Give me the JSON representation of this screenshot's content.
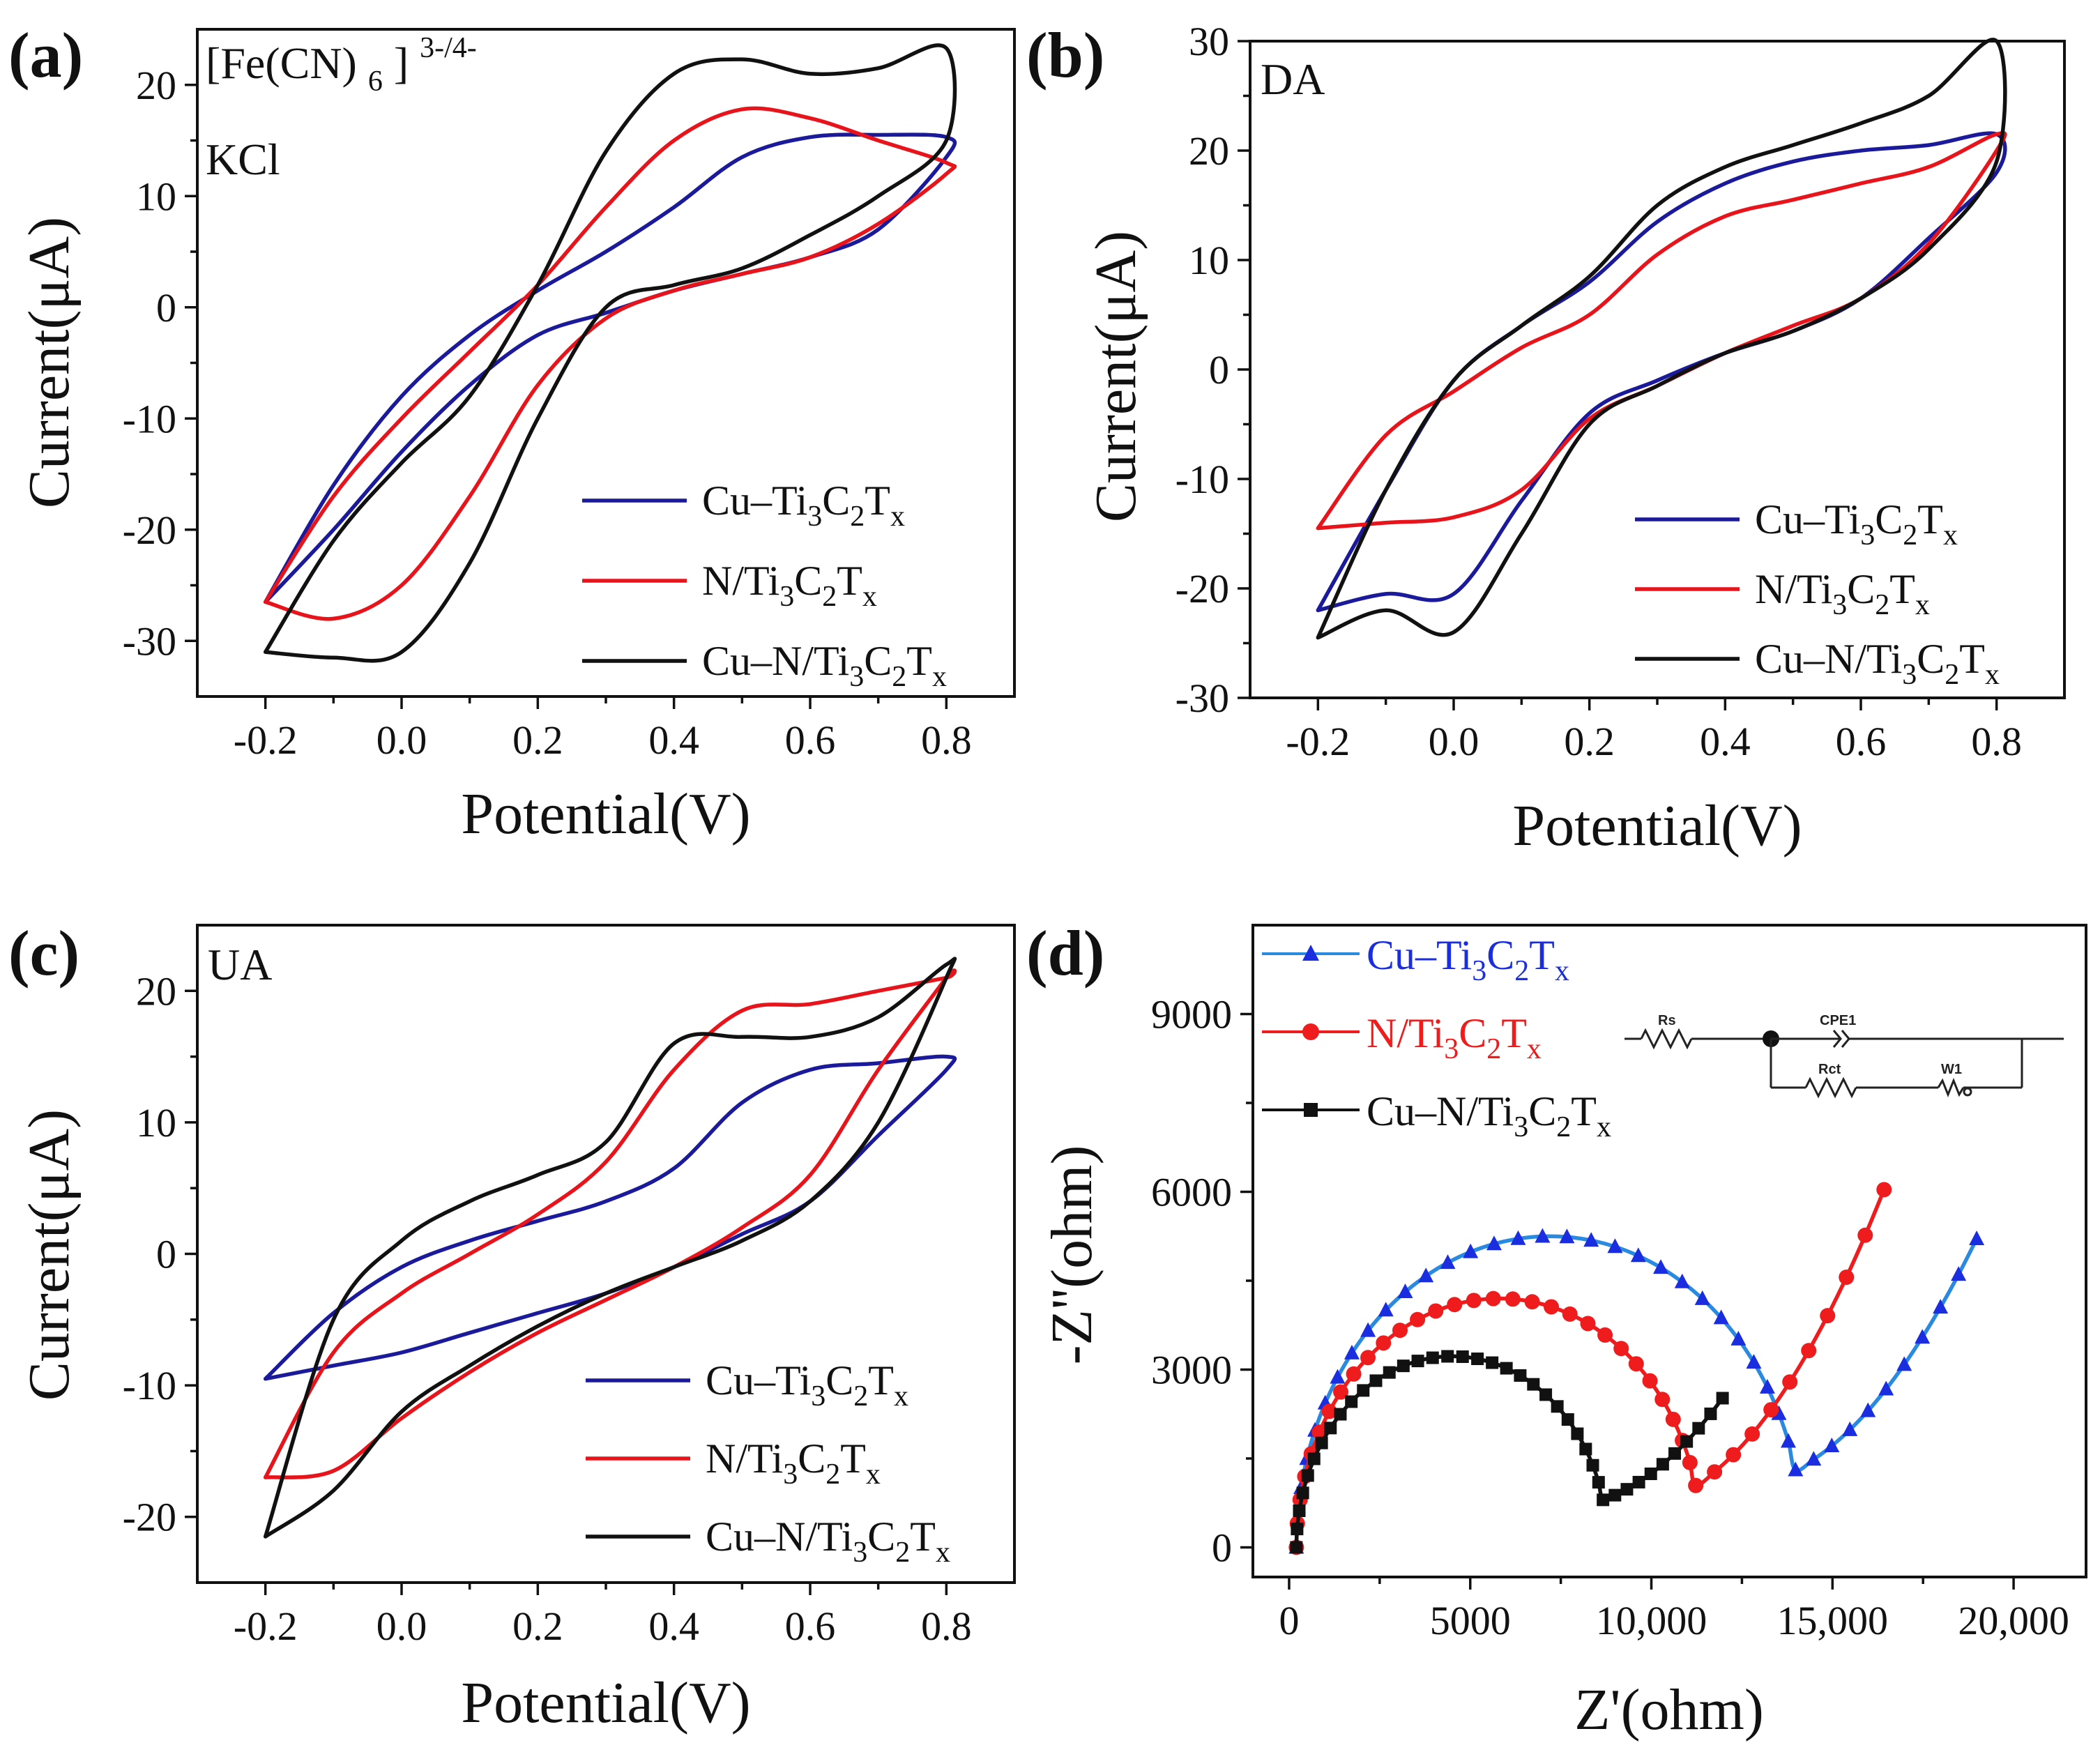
{
  "figure": {
    "colors": {
      "blue": "#1a1a9a",
      "red": "#e8141b",
      "black": "#111111",
      "eis_blue_line": "#2a8ae0",
      "eis_blue_marker": "#1a2ee0",
      "eis_red": "#ee1c1c"
    },
    "chart_data": [
      {
        "id": "a",
        "type": "line",
        "panel_label": "(a)",
        "annotations": [
          "[Fe(CN)6]3-/4-",
          "KCl"
        ],
        "annotation_parts": {
          "fe_main": "[Fe(CN)",
          "fe_sub": "6",
          "fe_sup": "]3-/4-",
          "kcl": "KCl"
        },
        "xlabel": "Potential(V)",
        "ylabel": "Current(μA)",
        "xlim": [
          -0.3,
          0.9
        ],
        "ylim": [
          -35,
          25
        ],
        "xticks": [
          -0.2,
          0.0,
          0.2,
          0.4,
          0.6,
          0.8
        ],
        "xtick_labels": [
          "-0.2",
          "0.0",
          "0.2",
          "0.4",
          "0.6",
          "0.8"
        ],
        "yticks": [
          -30,
          -20,
          -10,
          0,
          10,
          20
        ],
        "ytick_labels": [
          "-30",
          "-20",
          "-10",
          "0",
          "10",
          "20"
        ],
        "legend_position": "lower-right",
        "series": [
          {
            "name": "Cu–Ti3C2Tx",
            "color": "blue",
            "x": [
              -0.2,
              -0.1,
              0.0,
              0.1,
              0.2,
              0.3,
              0.4,
              0.5,
              0.6,
              0.7,
              0.8,
              0.8,
              0.7,
              0.6,
              0.5,
              0.4,
              0.3,
              0.2,
              0.1,
              0.0,
              -0.1,
              -0.2
            ],
            "y": [
              -26.5,
              -16,
              -8,
              -2.5,
              1.5,
              5,
              9,
              13.5,
              15.3,
              15.5,
              15.3,
              13.5,
              7,
              4.5,
              3,
              1.5,
              -0.5,
              -2.5,
              -7,
              -13,
              -20,
              -26.5
            ]
          },
          {
            "name": "N/Ti3C2Tx",
            "color": "red",
            "x": [
              -0.2,
              -0.1,
              0.0,
              0.1,
              0.2,
              0.3,
              0.4,
              0.5,
              0.6,
              0.7,
              0.8,
              0.8,
              0.7,
              0.6,
              0.5,
              0.4,
              0.3,
              0.2,
              0.1,
              0.0,
              -0.1,
              -0.2
            ],
            "y": [
              -26.5,
              -17,
              -10,
              -4,
              2,
              9,
              15,
              17.8,
              17,
              15,
              13,
              12,
              7.5,
              4.5,
              3,
              1.5,
              -1,
              -7,
              -17,
              -25,
              -28,
              -26.5
            ]
          },
          {
            "name": "Cu–N/Ti3C2Tx",
            "color": "black",
            "x": [
              -0.2,
              -0.1,
              0.0,
              0.1,
              0.2,
              0.3,
              0.4,
              0.5,
              0.6,
              0.7,
              0.8,
              0.8,
              0.7,
              0.6,
              0.5,
              0.4,
              0.3,
              0.2,
              0.1,
              0.0,
              -0.1,
              -0.2
            ],
            "y": [
              -31,
              -21,
              -14,
              -8,
              2,
              14,
              21,
              22.3,
              21,
              21.5,
              23.3,
              15,
              10,
              6.5,
              3.5,
              2,
              0,
              -10,
              -23,
              -31,
              -31.5,
              -31
            ]
          }
        ]
      },
      {
        "id": "b",
        "type": "line",
        "panel_label": "(b)",
        "annotations": [
          "DA"
        ],
        "xlabel": "Potential(V)",
        "ylabel": "Current(μA)",
        "xlim": [
          -0.3,
          0.9
        ],
        "ylim": [
          -30,
          30
        ],
        "xticks": [
          -0.2,
          0.0,
          0.2,
          0.4,
          0.6,
          0.8
        ],
        "xtick_labels": [
          "-0.2",
          "0.0",
          "0.2",
          "0.4",
          "0.6",
          "0.8"
        ],
        "yticks": [
          -30,
          -20,
          -10,
          0,
          10,
          20,
          30
        ],
        "ytick_labels": [
          "-30",
          "-20",
          "-10",
          "0",
          "10",
          "20",
          "30"
        ],
        "legend_position": "lower-right",
        "series": [
          {
            "name": "Cu–Ti3C2Tx",
            "color": "blue",
            "x": [
              -0.2,
              -0.1,
              0.0,
              0.1,
              0.2,
              0.3,
              0.4,
              0.5,
              0.6,
              0.7,
              0.8,
              0.8,
              0.7,
              0.6,
              0.5,
              0.4,
              0.3,
              0.2,
              0.1,
              0.0,
              -0.1,
              -0.2
            ],
            "y": [
              -22,
              -11,
              -1,
              4,
              8,
              13.5,
              17,
              19,
              20,
              20.5,
              21.5,
              18,
              12,
              6.5,
              3.5,
              1.5,
              -1,
              -4,
              -12,
              -20.5,
              -20.5,
              -22
            ]
          },
          {
            "name": "N/Ti3C2Tx",
            "color": "red",
            "x": [
              -0.2,
              -0.1,
              0.0,
              0.1,
              0.2,
              0.3,
              0.4,
              0.5,
              0.6,
              0.7,
              0.8,
              0.8,
              0.7,
              0.6,
              0.5,
              0.4,
              0.3,
              0.2,
              0.1,
              0.0,
              -0.1,
              -0.2
            ],
            "y": [
              -14.5,
              -6,
              -2,
              2,
              5,
              10.5,
              14,
              15.5,
              17,
              18.5,
              21.5,
              20,
              11.5,
              6.5,
              4,
              1.5,
              -1.5,
              -4.5,
              -11,
              -13.5,
              -14,
              -14.5
            ]
          },
          {
            "name": "Cu–N/Ti3C2Tx",
            "color": "black",
            "x": [
              -0.2,
              -0.1,
              0.0,
              0.1,
              0.2,
              0.3,
              0.4,
              0.5,
              0.6,
              0.7,
              0.8,
              0.8,
              0.7,
              0.6,
              0.5,
              0.4,
              0.3,
              0.2,
              0.1,
              0.0,
              -0.1,
              -0.2
            ],
            "y": [
              -24.5,
              -11,
              -1,
              4,
              8.5,
              15,
              18.5,
              20.5,
              22.5,
              25,
              30,
              19,
              11,
              6.5,
              3.5,
              1.5,
              -1.5,
              -5,
              -15,
              -24,
              -22,
              -24.5
            ]
          }
        ]
      },
      {
        "id": "c",
        "type": "line",
        "panel_label": "(c)",
        "annotations": [
          "UA"
        ],
        "xlabel": "Potential(V)",
        "ylabel": "Current(μA)",
        "xlim": [
          -0.3,
          0.9
        ],
        "ylim": [
          -25,
          25
        ],
        "xticks": [
          -0.2,
          0.0,
          0.2,
          0.4,
          0.6,
          0.8
        ],
        "xtick_labels": [
          "-0.2",
          "0.0",
          "0.2",
          "0.4",
          "0.6",
          "0.8"
        ],
        "yticks": [
          -20,
          -10,
          0,
          10,
          20
        ],
        "ytick_labels": [
          "-20",
          "-10",
          "0",
          "10",
          "20"
        ],
        "legend_position": "lower-right",
        "series": [
          {
            "name": "Cu–Ti3C2Tx",
            "color": "blue",
            "x": [
              -0.2,
              -0.1,
              0.0,
              0.1,
              0.2,
              0.3,
              0.4,
              0.5,
              0.6,
              0.7,
              0.8,
              0.8,
              0.7,
              0.6,
              0.5,
              0.4,
              0.3,
              0.2,
              0.1,
              0.0,
              -0.1,
              -0.2
            ],
            "y": [
              -9.5,
              -4.5,
              -1,
              1,
              2.5,
              4,
              6.5,
              11.5,
              14,
              14.5,
              15,
              14,
              9,
              4,
              1.5,
              -1,
              -3,
              -4.5,
              -6,
              -7.5,
              -8.5,
              -9.5
            ]
          },
          {
            "name": "N/Ti3C2Tx",
            "color": "red",
            "x": [
              -0.2,
              -0.1,
              0.0,
              0.1,
              0.2,
              0.3,
              0.4,
              0.5,
              0.6,
              0.7,
              0.8,
              0.8,
              0.7,
              0.6,
              0.5,
              0.4,
              0.3,
              0.2,
              0.1,
              0.0,
              -0.1,
              -0.2
            ],
            "y": [
              -17,
              -7.5,
              -3,
              0,
              3,
              7,
              14,
              18.5,
              19,
              20,
              21,
              21,
              14,
              6,
              2,
              -1,
              -3.5,
              -6,
              -9,
              -12.5,
              -16.5,
              -17
            ]
          },
          {
            "name": "Cu–N/Ti3C2Tx",
            "color": "black",
            "x": [
              -0.2,
              -0.1,
              0.0,
              0.1,
              0.2,
              0.3,
              0.4,
              0.5,
              0.6,
              0.7,
              0.8,
              0.8,
              0.7,
              0.6,
              0.5,
              0.4,
              0.3,
              0.2,
              0.1,
              0.0,
              -0.1,
              -0.2
            ],
            "y": [
              -21.5,
              -5,
              1,
              4,
              6,
              8.5,
              16,
              16.5,
              16.5,
              18,
              22,
              21,
              10,
              4,
              1,
              -1,
              -3,
              -5.5,
              -8.5,
              -12,
              -18,
              -21.5
            ]
          }
        ]
      },
      {
        "id": "d",
        "type": "scatter",
        "panel_label": "(d)",
        "xlabel": "Z'(ohm)",
        "ylabel": "-Z''(ohm)",
        "xlim": [
          -1000,
          22000
        ],
        "ylim": [
          -500,
          10500
        ],
        "xticks": [
          0,
          5000,
          10000,
          15000,
          20000
        ],
        "xtick_labels": [
          "0",
          "5000",
          "10,000",
          "15,000",
          "20,000"
        ],
        "yticks": [
          0,
          3000,
          6000,
          9000
        ],
        "ytick_labels": [
          "0",
          "3000",
          "6000",
          "9000"
        ],
        "legend_position": "top-left",
        "equivalent_circuit_labels": [
          "Rs",
          "CPE1",
          "Rct",
          "W1"
        ],
        "series": [
          {
            "name": "Cu–Ti3C2Tx",
            "marker": "triangle",
            "line_color": "eis_blue_line",
            "marker_color": "eis_blue_marker",
            "arc": {
              "r0": 200,
              "rct": 14000,
              "warburg_slope": 0.78
            }
          },
          {
            "name": "N/Ti3C2Tx",
            "marker": "circle",
            "line_color": "eis_red",
            "marker_color": "eis_red",
            "arc": {
              "r0": 200,
              "rct": 11200,
              "warburg_slope": 0.96
            }
          },
          {
            "name": "Cu–N/Ti3C2Tx",
            "marker": "square",
            "line_color": "black",
            "marker_color": "black",
            "arc": {
              "r0": 200,
              "rct": 8600,
              "warburg_slope": 0.52
            }
          }
        ]
      }
    ]
  }
}
